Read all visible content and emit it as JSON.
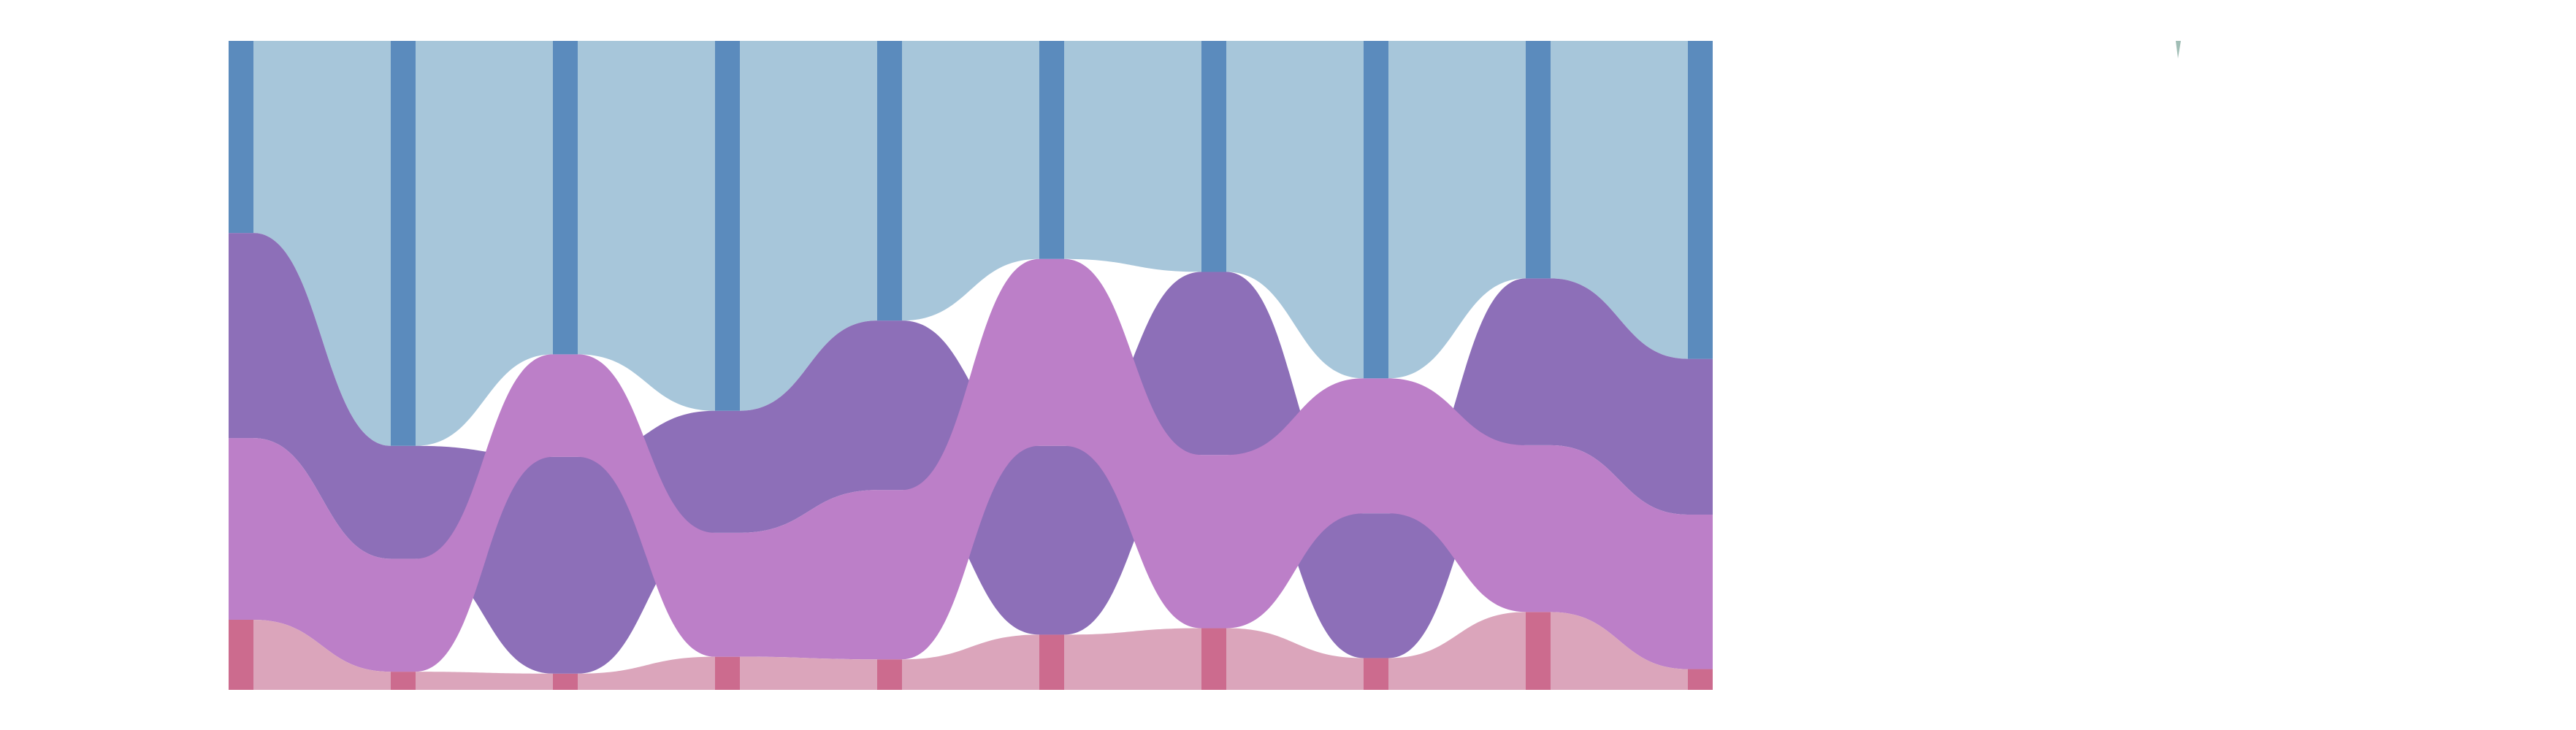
{
  "chart_data": {
    "type": "area",
    "subtype": "alluvial",
    "title": "",
    "xlabel": "",
    "ylabel": "",
    "legend": "none",
    "grid": false,
    "x": [
      1,
      2,
      3,
      4,
      5,
      6,
      7,
      8,
      9,
      10
    ],
    "ylim": [
      0,
      100
    ],
    "series": [
      {
        "color": "#a7c6da",
        "node_color": "#5b8bbd",
        "values": [
          29.6,
          62.4,
          48.3,
          57.0,
          43.1,
          33.6,
          35.6,
          52.0,
          36.6,
          49.0
        ]
      },
      {
        "color": "#8d6fb8",
        "node_color": "#8d6fb8",
        "values": [
          31.6,
          17.4,
          33.4,
          18.8,
          26.1,
          29.1,
          28.2,
          22.3,
          25.7,
          24.0
        ]
      },
      {
        "color": "#bc7fc8",
        "node_color": "#bc7fc8",
        "values": [
          28.0,
          17.4,
          15.8,
          19.1,
          26.1,
          28.8,
          26.7,
          20.8,
          25.7,
          23.8
        ]
      },
      {
        "color": "#dba5bb",
        "node_color": "#cc6b8e",
        "values": [
          10.8,
          2.8,
          2.5,
          5.1,
          4.7,
          8.5,
          9.5,
          4.9,
          12.0,
          3.2
        ]
      }
    ],
    "node_order_bottom_to_top": [
      [
        3,
        2,
        1,
        0
      ],
      [
        3,
        2,
        1,
        0
      ],
      [
        3,
        1,
        2,
        0
      ],
      [
        3,
        2,
        1,
        0
      ],
      [
        3,
        2,
        1,
        0
      ],
      [
        3,
        1,
        2,
        0
      ],
      [
        3,
        2,
        1,
        0
      ],
      [
        3,
        1,
        2,
        0
      ],
      [
        3,
        2,
        1,
        0
      ],
      [
        3,
        2,
        1,
        0
      ]
    ]
  }
}
